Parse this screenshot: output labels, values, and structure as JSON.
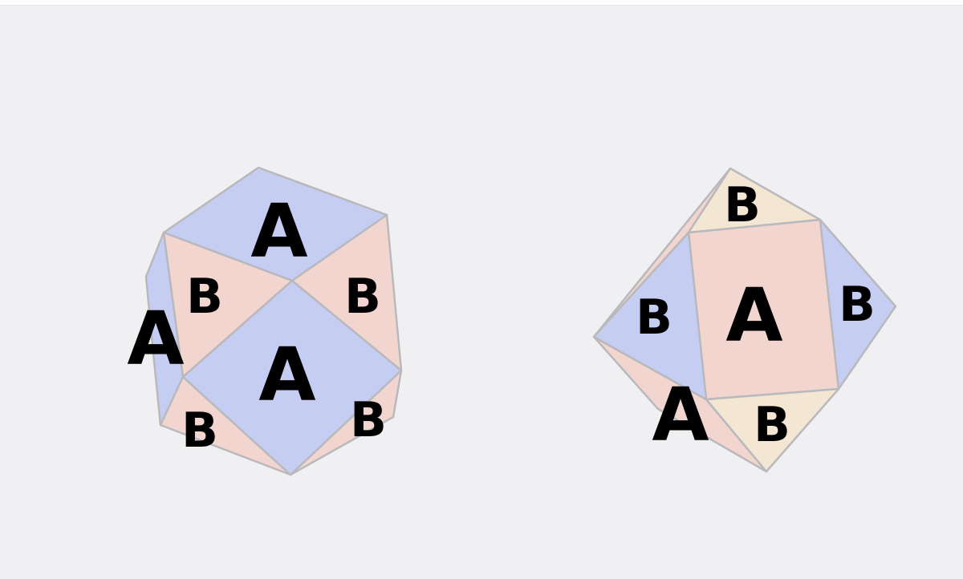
{
  "labels": {
    "face_a": "A",
    "face_b": "B"
  },
  "colors": {
    "background": "#f0f0f2",
    "face_a_blue": "#c5cef2",
    "face_b_pink": "#f2d5cf",
    "face_b_cream": "#f3e6d2",
    "edge": "#b9b9bd"
  },
  "figures": [
    {
      "name": "left-polyhedron"
    },
    {
      "name": "right-polyhedron"
    }
  ]
}
